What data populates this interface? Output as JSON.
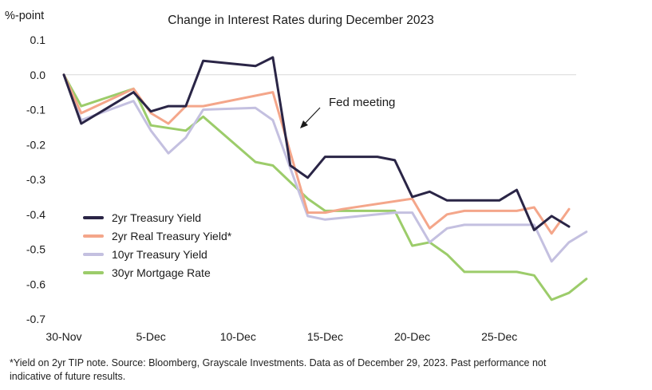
{
  "chart_data": {
    "type": "line",
    "title": "Change in Interest Rates during December 2023",
    "ylabel": "%-point",
    "xlabel": "",
    "ylim": [
      -0.7,
      0.1
    ],
    "yticks": [
      0.1,
      0.0,
      -0.1,
      -0.2,
      -0.3,
      -0.4,
      -0.5,
      -0.6,
      -0.7
    ],
    "ytick_labels": [
      "0.1",
      "0.0",
      "-0.1",
      "-0.2",
      "-0.3",
      "-0.4",
      "-0.5",
      "-0.6",
      "-0.7"
    ],
    "xlim": [
      0,
      29
    ],
    "xticks": [
      {
        "x": 0,
        "label": "30-Nov"
      },
      {
        "x": 5,
        "label": "5-Dec"
      },
      {
        "x": 10,
        "label": "10-Dec"
      },
      {
        "x": 15,
        "label": "15-Dec"
      },
      {
        "x": 20,
        "label": "20-Dec"
      },
      {
        "x": 25,
        "label": "25-Dec"
      }
    ],
    "series": [
      {
        "name": "2yr Treasury Yield",
        "color": "#2a2546",
        "points": [
          [
            0,
            0.0
          ],
          [
            1,
            -0.14
          ],
          [
            4,
            -0.05
          ],
          [
            5,
            -0.105
          ],
          [
            6,
            -0.09
          ],
          [
            7,
            -0.09
          ],
          [
            8,
            0.04
          ],
          [
            11,
            0.025
          ],
          [
            12,
            0.05
          ],
          [
            13,
            -0.26
          ],
          [
            14,
            -0.295
          ],
          [
            15,
            -0.235
          ],
          [
            18,
            -0.235
          ],
          [
            19,
            -0.245
          ],
          [
            20,
            -0.35
          ],
          [
            21,
            -0.335
          ],
          [
            22,
            -0.36
          ],
          [
            25,
            -0.36
          ],
          [
            26,
            -0.33
          ],
          [
            27,
            -0.445
          ],
          [
            28,
            -0.405
          ],
          [
            29,
            -0.435
          ]
        ]
      },
      {
        "name": "2yr Real Treasury Yield*",
        "color": "#f4a68a",
        "points": [
          [
            0,
            0.0
          ],
          [
            1,
            -0.11
          ],
          [
            4,
            -0.04
          ],
          [
            5,
            -0.11
          ],
          [
            6,
            -0.14
          ],
          [
            7,
            -0.09
          ],
          [
            8,
            -0.09
          ],
          [
            12,
            -0.05
          ],
          [
            14,
            -0.395
          ],
          [
            15,
            -0.395
          ],
          [
            16,
            -0.385
          ],
          [
            20,
            -0.355
          ],
          [
            21,
            -0.44
          ],
          [
            22,
            -0.4
          ],
          [
            23,
            -0.39
          ],
          [
            26,
            -0.39
          ],
          [
            27,
            -0.38
          ],
          [
            28,
            -0.455
          ],
          [
            29,
            -0.385
          ]
        ]
      },
      {
        "name": "10yr Treasury Yield",
        "color": "#c4c0e0",
        "points": [
          [
            0,
            0.0
          ],
          [
            1,
            -0.13
          ],
          [
            4,
            -0.075
          ],
          [
            5,
            -0.16
          ],
          [
            6,
            -0.225
          ],
          [
            7,
            -0.18
          ],
          [
            8,
            -0.1
          ],
          [
            11,
            -0.095
          ],
          [
            12,
            -0.13
          ],
          [
            14,
            -0.405
          ],
          [
            15,
            -0.415
          ],
          [
            19,
            -0.395
          ],
          [
            20,
            -0.395
          ],
          [
            21,
            -0.48
          ],
          [
            22,
            -0.44
          ],
          [
            23,
            -0.43
          ],
          [
            26,
            -0.43
          ],
          [
            27,
            -0.43
          ],
          [
            28,
            -0.535
          ],
          [
            29,
            -0.48
          ],
          [
            30,
            -0.45
          ]
        ]
      },
      {
        "name": "30yr Mortgage Rate",
        "color": "#9ccc6a",
        "points": [
          [
            0,
            0.0
          ],
          [
            1,
            -0.09
          ],
          [
            4,
            -0.04
          ],
          [
            5,
            -0.145
          ],
          [
            7,
            -0.16
          ],
          [
            8,
            -0.12
          ],
          [
            11,
            -0.25
          ],
          [
            12,
            -0.26
          ],
          [
            14,
            -0.355
          ],
          [
            15,
            -0.39
          ],
          [
            19,
            -0.39
          ],
          [
            20,
            -0.49
          ],
          [
            21,
            -0.48
          ],
          [
            22,
            -0.515
          ],
          [
            23,
            -0.565
          ],
          [
            26,
            -0.565
          ],
          [
            27,
            -0.575
          ],
          [
            28,
            -0.645
          ],
          [
            29,
            -0.625
          ],
          [
            30,
            -0.585
          ]
        ]
      }
    ],
    "annotations": [
      {
        "text": "Fed meeting",
        "x": 13.5,
        "y": -0.12
      }
    ],
    "legend": "bottom-left",
    "grid": false
  },
  "footnote": "*Yield on 2yr TIP note. Source: Bloomberg, Grayscale Investments. Data as of December 29, 2023. Past performance not indicative of future results."
}
